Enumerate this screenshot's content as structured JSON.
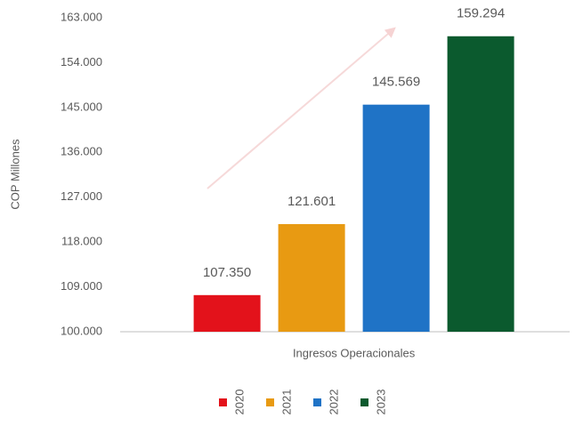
{
  "chart_data": {
    "type": "bar",
    "y_label": "COP Millones",
    "categories": [
      "Ingresos Operacionales"
    ],
    "series": [
      {
        "name": "2020",
        "color": "#e3121b",
        "values": [
          107350
        ],
        "value_labels": [
          "107.350"
        ]
      },
      {
        "name": "2021",
        "color": "#e89a12",
        "values": [
          121601
        ],
        "value_labels": [
          "121.601"
        ]
      },
      {
        "name": "2022",
        "color": "#1f73c6",
        "values": [
          145569
        ],
        "value_labels": [
          "145.569"
        ]
      },
      {
        "name": "2023",
        "color": "#0b5a2e",
        "values": [
          159294
        ],
        "value_labels": [
          "159.294"
        ]
      }
    ],
    "ylim": [
      100000,
      163000
    ],
    "yticks": [
      {
        "value": 100000,
        "label": "100.000"
      },
      {
        "value": 109000,
        "label": "109.000"
      },
      {
        "value": 118000,
        "label": "118.000"
      },
      {
        "value": 127000,
        "label": "127.000"
      },
      {
        "value": 136000,
        "label": "136.000"
      },
      {
        "value": 145000,
        "label": "145.000"
      },
      {
        "value": 154000,
        "label": "154.000"
      },
      {
        "value": 163000,
        "label": "163.000"
      }
    ],
    "grid": false,
    "legend": "bottom"
  }
}
